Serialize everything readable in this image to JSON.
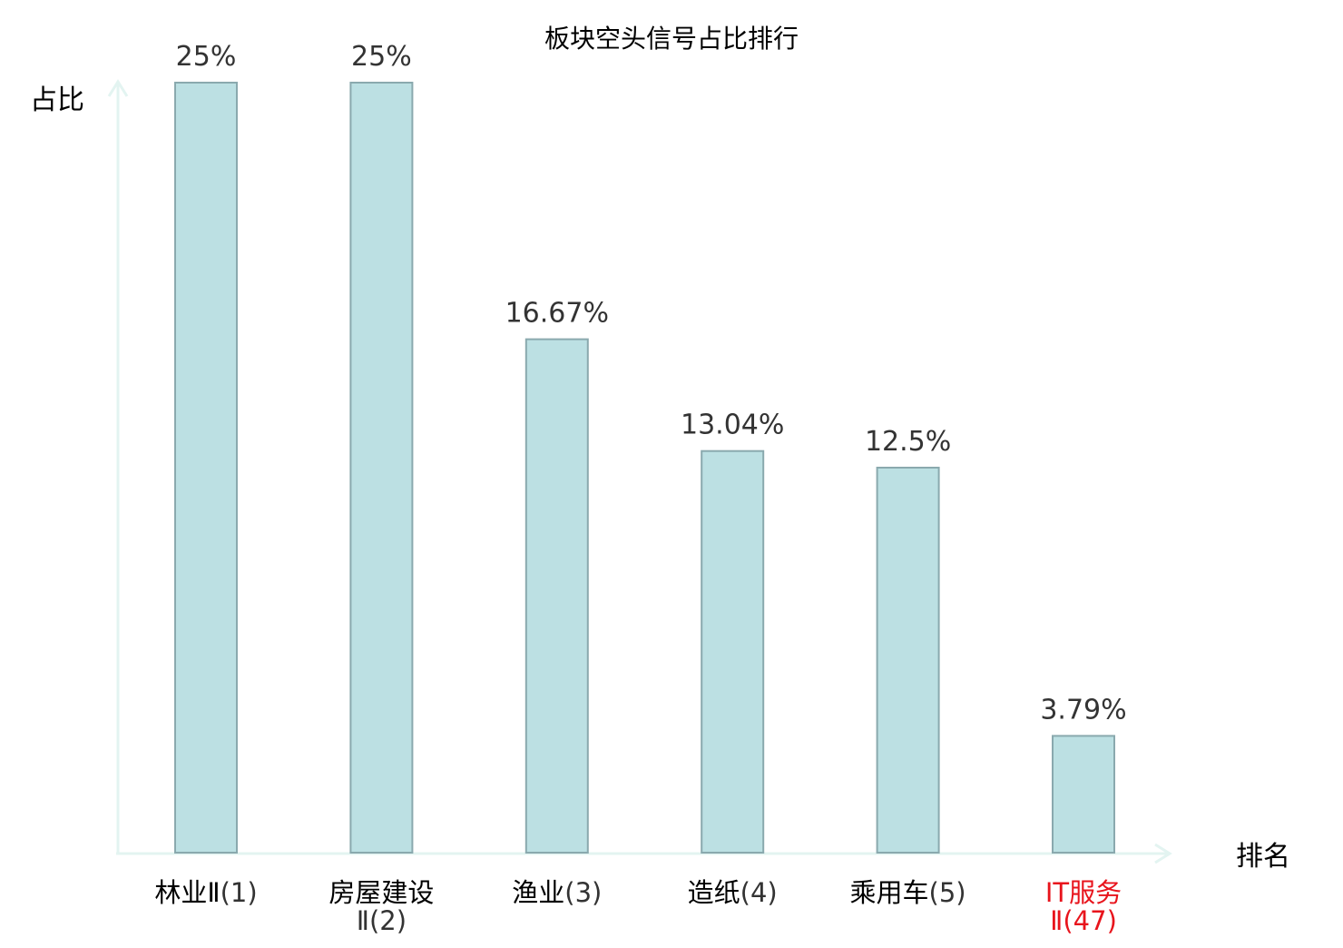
{
  "chart_data": {
    "type": "bar",
    "title": "板块空头信号占比排行",
    "ylabel": "占比",
    "xlabel": "排名",
    "ylim": [
      0,
      25
    ],
    "grid": false,
    "legend": "none",
    "categories": [
      {
        "name": "林业Ⅱ",
        "rank": "(1)",
        "highlight": false
      },
      {
        "name": "房屋建设",
        "rank": "Ⅱ(2)",
        "highlight": false
      },
      {
        "name": "渔业",
        "rank": "(3)",
        "highlight": false
      },
      {
        "name": "造纸",
        "rank": "(4)",
        "highlight": false
      },
      {
        "name": "乘用车",
        "rank": "(5)",
        "highlight": false
      },
      {
        "name": "IT服务",
        "rank": "Ⅱ(47)",
        "highlight": true
      }
    ],
    "values": [
      25,
      25,
      16.67,
      13.04,
      12.5,
      3.79
    ],
    "value_labels": [
      "25%",
      "25%",
      "16.67%",
      "13.04%",
      "12.5%",
      "3.79%"
    ]
  },
  "colors": {
    "bar_fill": "#bce0e3",
    "bar_stroke": "#8aa9ae",
    "axis": "#e3f4f1",
    "text": "#333333",
    "label_text": "#000000",
    "highlight": "#e8141c"
  }
}
